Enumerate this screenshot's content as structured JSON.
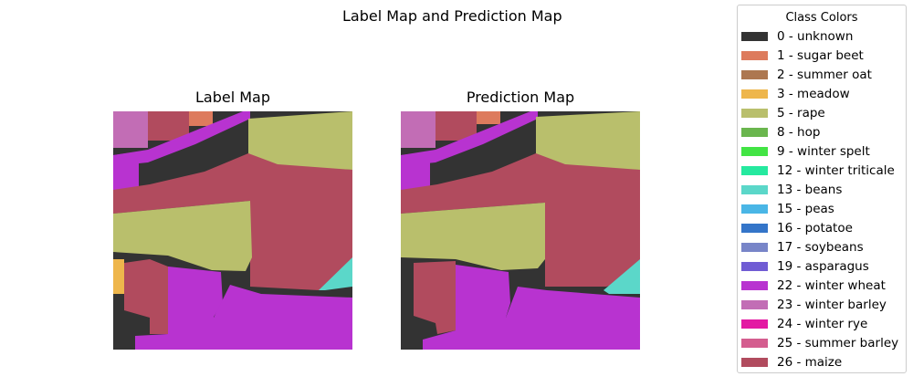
{
  "figure": {
    "title": "Label Map and Prediction Map"
  },
  "chart_data": {
    "type": "heatmap",
    "panels": [
      {
        "title": "Label Map"
      },
      {
        "title": "Prediction Map"
      }
    ],
    "legend": {
      "title": "Class Colors",
      "placement": "right",
      "items": [
        {
          "label": "0 - unknown",
          "color": "#333333"
        },
        {
          "label": "1 - sugar beet",
          "color": "#dd7b5d"
        },
        {
          "label": "2 - summer oat",
          "color": "#ad7750"
        },
        {
          "label": "3 - meadow",
          "color": "#eeb64c"
        },
        {
          "label": "5 - rape",
          "color": "#b9bf6c"
        },
        {
          "label": "8 - hop",
          "color": "#6ab64e"
        },
        {
          "label": "9 - winter spelt",
          "color": "#42e444"
        },
        {
          "label": "12 - winter triticale",
          "color": "#25e99f"
        },
        {
          "label": "13 - beans",
          "color": "#5bd7c9"
        },
        {
          "label": "15 - peas",
          "color": "#4ab6e6"
        },
        {
          "label": "16 - potatoe",
          "color": "#3475c9"
        },
        {
          "label": "17 - soybeans",
          "color": "#7885c8"
        },
        {
          "label": "19 - asparagus",
          "color": "#705cd4"
        },
        {
          "label": "22 - winter wheat",
          "color": "#b833d0"
        },
        {
          "label": "23 - winter barley",
          "color": "#c26db5"
        },
        {
          "label": "24 - winter rye",
          "color": "#e319a3"
        },
        {
          "label": "25 - summer barley",
          "color": "#d45d8f"
        },
        {
          "label": "26 - maize",
          "color": "#b14b5e"
        }
      ]
    },
    "grid": false,
    "axes": "off"
  }
}
